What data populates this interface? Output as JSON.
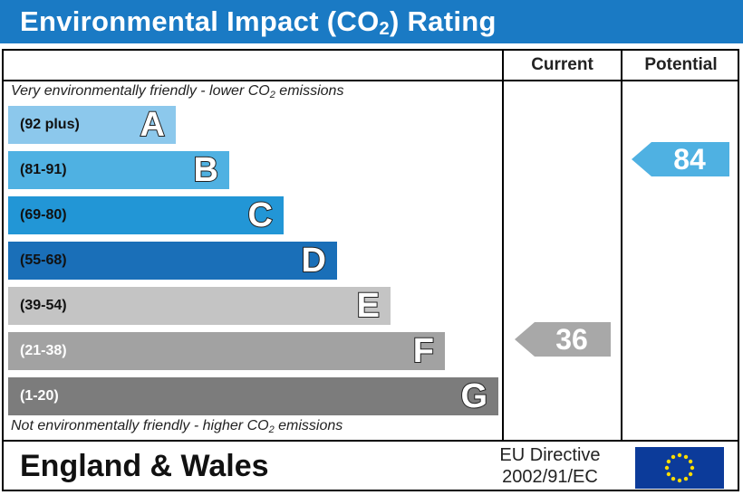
{
  "title": {
    "main": "Environmental Impact (CO",
    "sub": "2",
    "end": ") Rating"
  },
  "columns": {
    "current": "Current",
    "potential": "Potential"
  },
  "notes": {
    "top_pre": "Very environmentally friendly - lower CO",
    "top_sub": "2",
    "top_post": " emissions",
    "bottom_pre": "Not environmentally friendly - higher CO",
    "bottom_sub": "2",
    "bottom_post": " emissions"
  },
  "chart_data": {
    "type": "bar",
    "categories": [
      "A",
      "B",
      "C",
      "D",
      "E",
      "F",
      "G"
    ],
    "bands": [
      {
        "letter": "A",
        "range": "(92 plus)",
        "color": "#8cc8ec",
        "text_color": "#111111"
      },
      {
        "letter": "B",
        "range": "(81-91)",
        "color": "#4fb1e2",
        "text_color": "#111111"
      },
      {
        "letter": "C",
        "range": "(69-80)",
        "color": "#2296d6",
        "text_color": "#111111"
      },
      {
        "letter": "D",
        "range": "(55-68)",
        "color": "#1a6fb8",
        "text_color": "#111111"
      },
      {
        "letter": "E",
        "range": "(39-54)",
        "color": "#c4c4c4",
        "text_color": "#111111"
      },
      {
        "letter": "F",
        "range": "(21-38)",
        "color": "#a2a2a2",
        "text_color": "#ffffff"
      },
      {
        "letter": "G",
        "range": "(1-20)",
        "color": "#7c7c7c",
        "text_color": "#ffffff"
      }
    ],
    "current": {
      "value": 36,
      "band": "F",
      "color": "#a8a8a8"
    },
    "potential": {
      "value": 84,
      "band": "B",
      "color": "#4fb1e2"
    }
  },
  "footer": {
    "region": "England & Wales",
    "eu_line1": "EU Directive",
    "eu_line2": "2002/91/EC",
    "flag_color": "#0c3b9a",
    "star_color": "#ffdd00"
  }
}
